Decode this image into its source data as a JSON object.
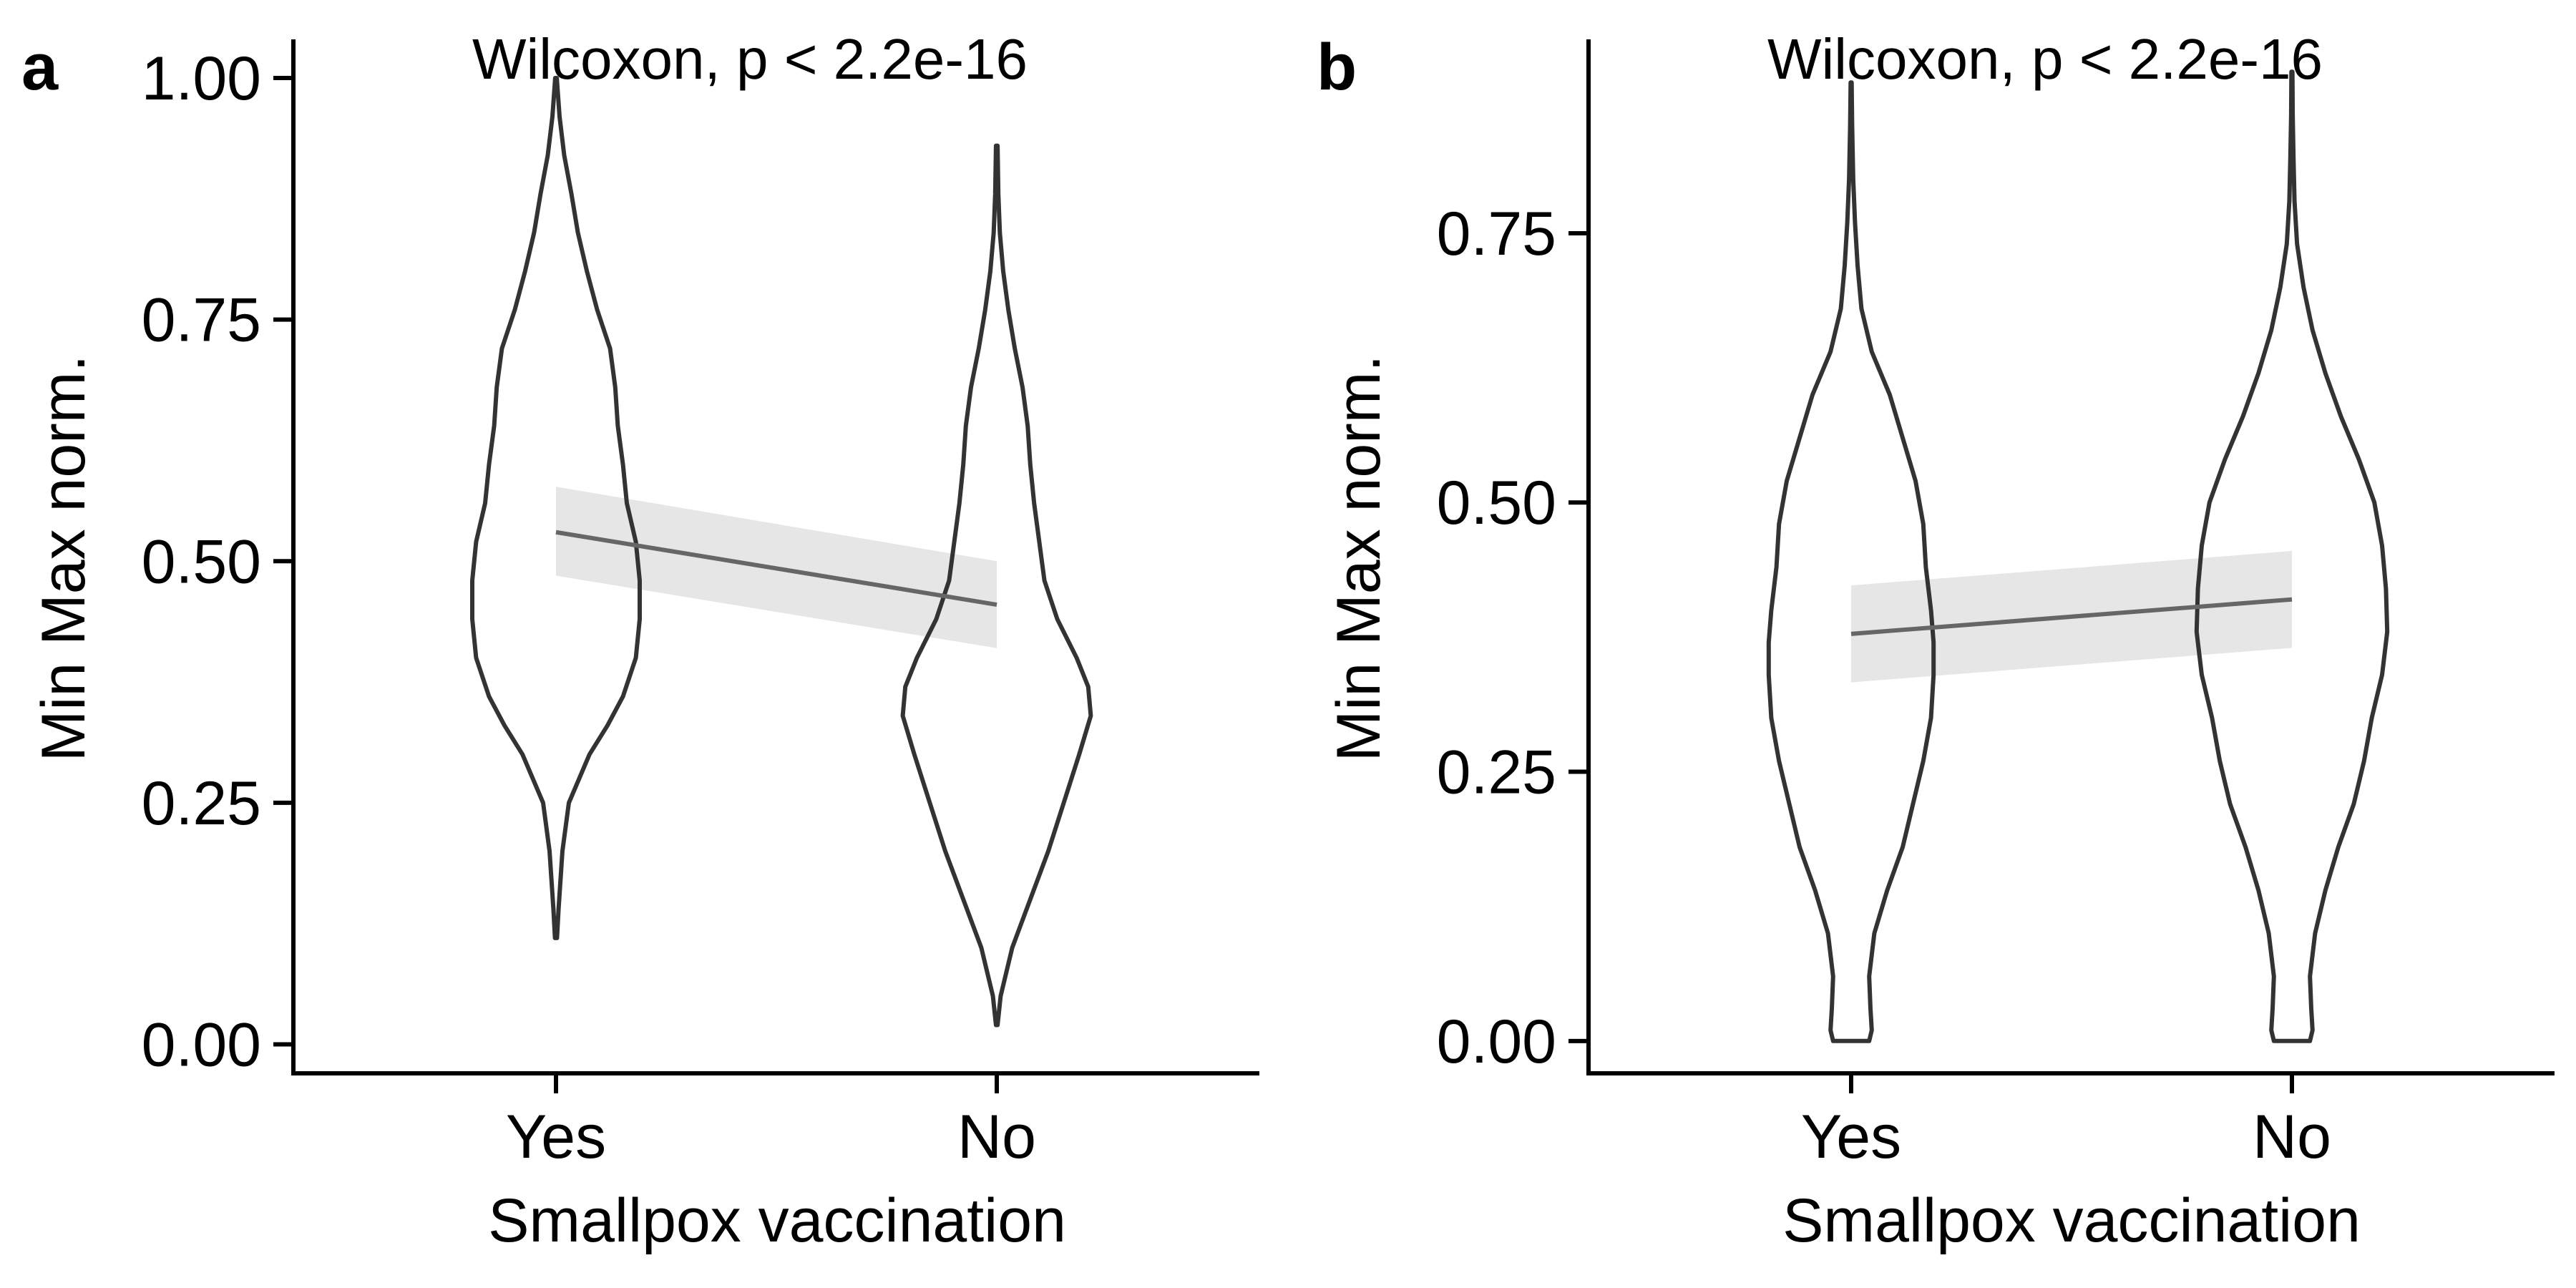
{
  "figure": {
    "colors": {
      "violin_stroke": "#333333",
      "trend_line": "#666666",
      "ci_band": "#e6e6e6",
      "axis": "#000000"
    }
  },
  "chart_data": [
    {
      "type": "violin",
      "panel_label": "a",
      "annotation": "Wilcoxon, p < 2.2e-16",
      "xlabel": "Smallpox vaccination",
      "ylabel": "Min Max norm.",
      "categories": [
        "Yes",
        "No"
      ],
      "ylim": [
        -0.03,
        1.04
      ],
      "yticks": [
        0.0,
        0.25,
        0.5,
        0.75,
        1.0
      ],
      "ytick_labels": [
        "0.00",
        "0.25",
        "0.50",
        "0.75",
        "1.00"
      ],
      "grid": false,
      "legend": "none",
      "violins": [
        {
          "category": "Yes",
          "profile": [
            [
              0.11,
              0.004
            ],
            [
              0.14,
              0.01
            ],
            [
              0.2,
              0.025
            ],
            [
              0.25,
              0.05
            ],
            [
              0.3,
              0.13
            ],
            [
              0.33,
              0.2
            ],
            [
              0.36,
              0.26
            ],
            [
              0.4,
              0.31
            ],
            [
              0.44,
              0.325
            ],
            [
              0.48,
              0.325
            ],
            [
              0.52,
              0.31
            ],
            [
              0.56,
              0.275
            ],
            [
              0.6,
              0.26
            ],
            [
              0.64,
              0.24
            ],
            [
              0.68,
              0.23
            ],
            [
              0.72,
              0.21
            ],
            [
              0.76,
              0.16
            ],
            [
              0.8,
              0.12
            ],
            [
              0.84,
              0.085
            ],
            [
              0.88,
              0.06
            ],
            [
              0.92,
              0.032
            ],
            [
              0.96,
              0.014
            ],
            [
              1.0,
              0.003
            ]
          ]
        },
        {
          "category": "No",
          "profile": [
            [
              0.02,
              0.003
            ],
            [
              0.05,
              0.015
            ],
            [
              0.1,
              0.06
            ],
            [
              0.15,
              0.13
            ],
            [
              0.2,
              0.2
            ],
            [
              0.25,
              0.26
            ],
            [
              0.3,
              0.32
            ],
            [
              0.34,
              0.365
            ],
            [
              0.37,
              0.355
            ],
            [
              0.4,
              0.31
            ],
            [
              0.44,
              0.235
            ],
            [
              0.48,
              0.185
            ],
            [
              0.52,
              0.165
            ],
            [
              0.56,
              0.145
            ],
            [
              0.6,
              0.13
            ],
            [
              0.64,
              0.12
            ],
            [
              0.68,
              0.1
            ],
            [
              0.72,
              0.07
            ],
            [
              0.76,
              0.045
            ],
            [
              0.8,
              0.025
            ],
            [
              0.84,
              0.012
            ],
            [
              0.88,
              0.006
            ],
            [
              0.93,
              0.003
            ]
          ]
        }
      ],
      "trend": {
        "points": [
          [
            "Yes",
            0.53
          ],
          [
            "No",
            0.455
          ]
        ],
        "ci_lower": [
          0.485,
          0.41
        ],
        "ci_upper": [
          0.577,
          0.5
        ]
      }
    },
    {
      "type": "violin",
      "panel_label": "b",
      "annotation": "Wilcoxon, p < 2.2e-16",
      "xlabel": "Smallpox vaccination",
      "ylabel": "Min Max norm.",
      "categories": [
        "Yes",
        "No"
      ],
      "ylim": [
        -0.03,
        0.93
      ],
      "yticks": [
        0.0,
        0.25,
        0.5,
        0.75
      ],
      "ytick_labels": [
        "0.00",
        "0.25",
        "0.50",
        "0.75"
      ],
      "grid": false,
      "legend": "none",
      "violins": [
        {
          "category": "Yes",
          "profile": [
            [
              0.0,
              0.07
            ],
            [
              0.01,
              0.08
            ],
            [
              0.03,
              0.075
            ],
            [
              0.06,
              0.07
            ],
            [
              0.1,
              0.09
            ],
            [
              0.14,
              0.14
            ],
            [
              0.18,
              0.2
            ],
            [
              0.22,
              0.24
            ],
            [
              0.26,
              0.28
            ],
            [
              0.3,
              0.31
            ],
            [
              0.34,
              0.32
            ],
            [
              0.37,
              0.32
            ],
            [
              0.4,
              0.31
            ],
            [
              0.44,
              0.29
            ],
            [
              0.48,
              0.28
            ],
            [
              0.52,
              0.25
            ],
            [
              0.56,
              0.2
            ],
            [
              0.6,
              0.15
            ],
            [
              0.64,
              0.08
            ],
            [
              0.68,
              0.04
            ],
            [
              0.72,
              0.025
            ],
            [
              0.76,
              0.015
            ],
            [
              0.8,
              0.008
            ],
            [
              0.85,
              0.004
            ],
            [
              0.89,
              0.002
            ]
          ]
        },
        {
          "category": "No",
          "profile": [
            [
              0.0,
              0.07
            ],
            [
              0.01,
              0.08
            ],
            [
              0.03,
              0.075
            ],
            [
              0.06,
              0.07
            ],
            [
              0.1,
              0.09
            ],
            [
              0.14,
              0.13
            ],
            [
              0.18,
              0.18
            ],
            [
              0.22,
              0.24
            ],
            [
              0.26,
              0.28
            ],
            [
              0.3,
              0.31
            ],
            [
              0.34,
              0.35
            ],
            [
              0.38,
              0.37
            ],
            [
              0.42,
              0.365
            ],
            [
              0.46,
              0.35
            ],
            [
              0.5,
              0.32
            ],
            [
              0.54,
              0.26
            ],
            [
              0.58,
              0.19
            ],
            [
              0.62,
              0.13
            ],
            [
              0.66,
              0.08
            ],
            [
              0.7,
              0.045
            ],
            [
              0.74,
              0.02
            ],
            [
              0.78,
              0.01
            ],
            [
              0.82,
              0.006
            ],
            [
              0.86,
              0.003
            ],
            [
              0.9,
              0.002
            ]
          ]
        }
      ],
      "trend": {
        "points": [
          [
            "Yes",
            0.378
          ],
          [
            "No",
            0.41
          ]
        ],
        "ci_lower": [
          0.333,
          0.365
        ],
        "ci_upper": [
          0.423,
          0.455
        ]
      }
    }
  ]
}
